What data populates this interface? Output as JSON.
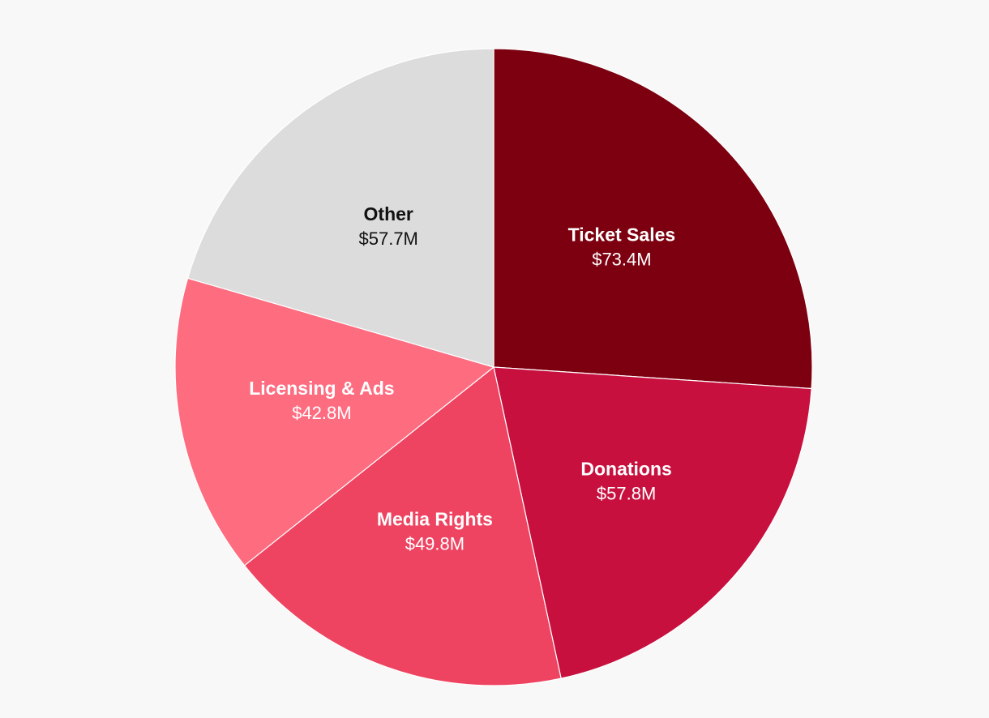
{
  "chart_data": {
    "type": "pie",
    "title": "",
    "start_angle_deg": 0,
    "direction": "clockwise",
    "slices": [
      {
        "label": "Ticket Sales",
        "value": 73.4,
        "value_label": "$73.4M",
        "color": "#7d0010",
        "text_color": "#ffffff"
      },
      {
        "label": "Donations",
        "value": 57.8,
        "value_label": "$57.8M",
        "color": "#c8103f",
        "text_color": "#ffffff"
      },
      {
        "label": "Media Rights",
        "value": 49.8,
        "value_label": "$49.8M",
        "color": "#ee4461",
        "text_color": "#ffffff"
      },
      {
        "label": "Licensing & Ads",
        "value": 42.8,
        "value_label": "$42.8M",
        "color": "#fe6c80",
        "text_color": "#ffffff"
      },
      {
        "label": "Other",
        "value": 57.7,
        "value_label": "$57.7M",
        "color": "#dcdcdc",
        "text_color": "#111111"
      }
    ]
  }
}
